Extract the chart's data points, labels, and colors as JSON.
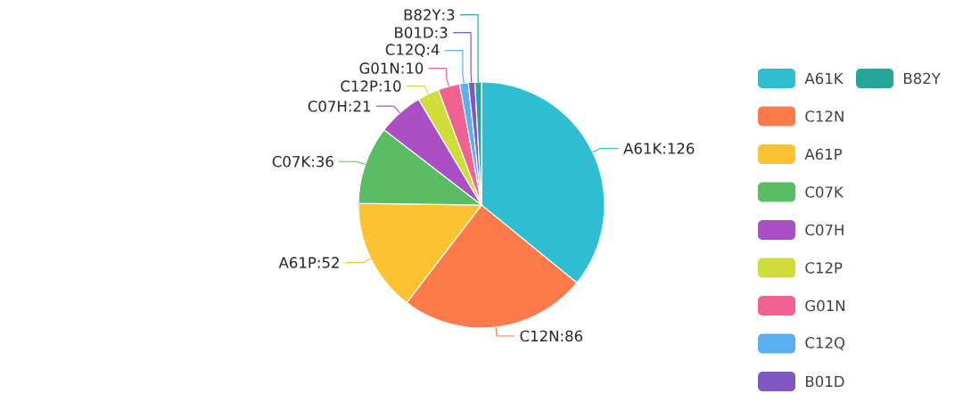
{
  "chart_data": {
    "type": "pie",
    "categories": [
      "A61K",
      "C12N",
      "A61P",
      "C07K",
      "C07H",
      "C12P",
      "G01N",
      "C12Q",
      "B01D",
      "B82Y"
    ],
    "values": [
      126,
      86,
      52,
      36,
      21,
      10,
      10,
      4,
      3,
      3
    ],
    "colors": [
      "#2ebdd1",
      "#ff7a4b",
      "#fcc22f",
      "#5bbd63",
      "#ab4fc7",
      "#cfdc3a",
      "#f06292",
      "#5aaff0",
      "#7e57c2",
      "#26a69a"
    ],
    "value_labels": [
      ":126",
      ":86",
      ":52",
      ":36",
      ":21",
      ":10",
      ":10",
      ":4",
      ":3",
      ":3"
    ],
    "legend": "right"
  }
}
